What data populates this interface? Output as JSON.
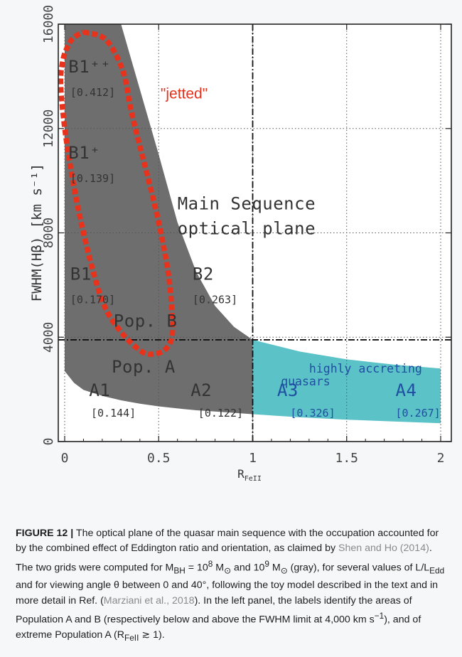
{
  "chart_data": {
    "type": "area",
    "title": "",
    "xlabel": "R",
    "xlabel_sub": "FeII",
    "ylabel": "FWHM(Hβ) [km s⁻¹]",
    "xlim": [
      -0.05,
      2.1
    ],
    "ylim": [
      0,
      16000
    ],
    "xticks": [
      "0",
      "0.5",
      "1",
      "1.5",
      "2"
    ],
    "yticks": [
      "0",
      "4000",
      "8000",
      "12000",
      "16000"
    ],
    "grid": true,
    "regions": {
      "gray_grid": {
        "color": "#6e6e6e",
        "upper_x": [
          0,
          0.1,
          0.2,
          0.3,
          0.4,
          0.5,
          0.6,
          0.7,
          0.8,
          0.9,
          1.0
        ],
        "upper_y": [
          16000,
          16000,
          16000,
          16000,
          13500,
          11000,
          8400,
          6500,
          5200,
          4400,
          3900
        ],
        "lower_x": [
          0,
          0.05,
          0.1,
          0.2,
          0.3,
          0.4,
          0.5,
          0.6,
          0.7,
          0.8,
          0.9,
          1.0
        ],
        "lower_y": [
          2700,
          2250,
          1980,
          1750,
          1580,
          1450,
          1350,
          1270,
          1200,
          1150,
          1100,
          1050
        ]
      },
      "cyan_grid": {
        "color": "#5bc2c8",
        "upper_x": [
          1.0,
          1.25,
          1.5,
          1.75,
          2.0
        ],
        "upper_y": [
          3900,
          3450,
          3150,
          2950,
          2800
        ],
        "lower_x": [
          1.0,
          1.25,
          1.5,
          1.75,
          2.0
        ],
        "lower_y": [
          1050,
          930,
          840,
          770,
          700
        ]
      }
    },
    "jetted_loop": {
      "label": "\"jetted\"",
      "color": "#e8321c",
      "x": [
        0.1,
        0.22,
        0.31,
        0.35,
        0.39,
        0.44,
        0.5,
        0.55,
        0.57,
        0.57,
        0.53,
        0.46,
        0.4,
        0.3,
        0.2,
        0.1,
        0.02,
        -0.02,
        -0.01,
        0.02,
        0.05,
        0.1
      ],
      "y": [
        15700,
        15400,
        14200,
        12800,
        11600,
        10200,
        8400,
        6500,
        5000,
        4000,
        3500,
        3350,
        3500,
        4200,
        5400,
        8000,
        11000,
        13500,
        14600,
        15200,
        15500,
        15700
      ]
    },
    "fwhm_limit": 3900,
    "extreme_limit_x": 1.0,
    "annotations": [
      {
        "text": "B1⁺⁺",
        "x": 0.02,
        "y": 14150,
        "size": "large",
        "color": "#333333"
      },
      {
        "text": "[0.412]",
        "x": 0.03,
        "y": 13250,
        "size": "small",
        "color": "#333333"
      },
      {
        "text": "B1⁺",
        "x": 0.02,
        "y": 10850,
        "size": "large",
        "color": "#333333"
      },
      {
        "text": "[0.139]",
        "x": 0.03,
        "y": 9950,
        "size": "small",
        "color": "#333333"
      },
      {
        "text": "Main Sequence",
        "x": 0.6,
        "y": 8900,
        "size": "large",
        "color": "#333333"
      },
      {
        "text": "optical plane",
        "x": 0.6,
        "y": 7950,
        "size": "large",
        "color": "#333333"
      },
      {
        "text": "B1",
        "x": 0.03,
        "y": 6200,
        "size": "large",
        "color": "#333333"
      },
      {
        "text": "[0.170]",
        "x": 0.03,
        "y": 5300,
        "size": "small",
        "color": "#333333"
      },
      {
        "text": "B2",
        "x": 0.68,
        "y": 6200,
        "size": "large",
        "color": "#333333"
      },
      {
        "text": "[0.263]",
        "x": 0.68,
        "y": 5300,
        "size": "small",
        "color": "#333333"
      },
      {
        "text": "Pop. B",
        "x": 0.26,
        "y": 4400,
        "size": "large",
        "color": "#333333"
      },
      {
        "text": "Pop. A",
        "x": 0.25,
        "y": 2650,
        "size": "large",
        "color": "#333333"
      },
      {
        "text": "A1",
        "x": 0.13,
        "y": 1750,
        "size": "large",
        "color": "#333333"
      },
      {
        "text": "[0.144]",
        "x": 0.14,
        "y": 950,
        "size": "small",
        "color": "#333333"
      },
      {
        "text": "A2",
        "x": 0.67,
        "y": 1750,
        "size": "large",
        "color": "#333333"
      },
      {
        "text": "[0.122]",
        "x": 0.71,
        "y": 950,
        "size": "small",
        "color": "#333333"
      },
      {
        "text": "highly accreting",
        "x": 1.3,
        "y": 2650,
        "size": "medium",
        "color": "#1f4fa0"
      },
      {
        "text": "quasars",
        "x": 1.15,
        "y": 2150,
        "size": "medium",
        "color": "#1f4fa0"
      },
      {
        "text": "A3",
        "x": 1.13,
        "y": 1750,
        "size": "large",
        "color": "#1f4fa0"
      },
      {
        "text": "[0.326]",
        "x": 1.2,
        "y": 950,
        "size": "small",
        "color": "#1f4fa0"
      },
      {
        "text": "A4",
        "x": 1.76,
        "y": 1750,
        "size": "large",
        "color": "#1f4fa0"
      },
      {
        "text": "[0.267]",
        "x": 1.76,
        "y": 950,
        "size": "small",
        "color": "#1f4fa0"
      }
    ]
  },
  "caption": {
    "label": "FIGURE 12 |",
    "text_1": " The optical plane of the quasar main sequence with the occupation accounted for by the combined effect of Eddington ratio and orientation, as claimed by ",
    "cite_1": "Shen and Ho (2014)",
    "text_2": ". The two grids were computed for M",
    "text_2b": "BH",
    "text_2c": " = 10",
    "text_2d": "8",
    "text_2e": " M",
    "text_2f": "⊙",
    "text_2g": " and 10",
    "text_2h": "9",
    "text_2i": " M",
    "text_2j": "⊙",
    "text_2k": " (gray), for several values of L/L",
    "text_2l": "Edd",
    "text_3": " and for viewing angle θ between 0 and 40°, following the toy model described in the text and in more detail in Ref. (",
    "cite_2": "Marziani et al., 2018",
    "text_4": "). In the left panel, the labels identify the areas of Population A and B (respectively below and above the FWHM limit at 4,000 km s",
    "text_4b": "−1",
    "text_4c": "), and of extreme Population A (R",
    "text_4d": "FeII",
    "text_4e": " ≳ 1)."
  }
}
